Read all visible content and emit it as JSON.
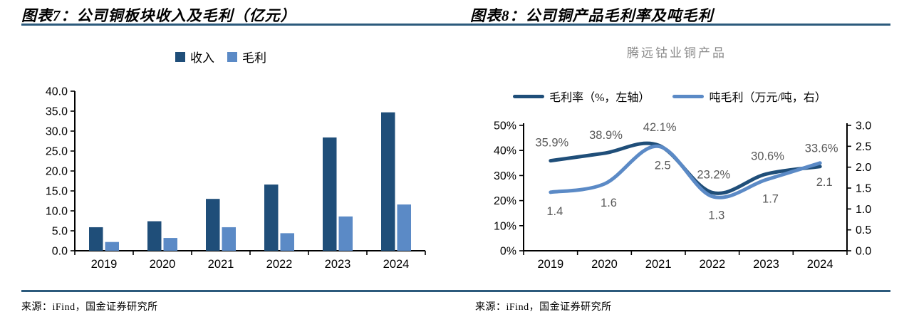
{
  "figures": [
    {
      "title": "图表7：公司铜板块收入及毛利（亿元）",
      "source": "来源：iFind，国金证券研究所"
    },
    {
      "title": "图表8：公司铜产品毛利率及吨毛利",
      "subtitle": "腾远钴业铜产品",
      "source": "来源：iFind，国金证券研究所"
    }
  ],
  "colors": {
    "dark_blue": "#1F4E79",
    "light_blue": "#5B8AC6",
    "rule_blue": "#2C5A7C",
    "label_gray": "#595959",
    "subtitle_gray": "#8A8A8A",
    "axis_black": "#000000"
  },
  "chart_data": [
    {
      "type": "bar",
      "title": "公司铜板块收入及毛利（亿元）",
      "categories": [
        "2019",
        "2020",
        "2021",
        "2022",
        "2023",
        "2024"
      ],
      "series": [
        {
          "name": "收入",
          "color_key": "dark_blue",
          "values": [
            5.9,
            7.4,
            13.0,
            16.6,
            28.4,
            34.7
          ]
        },
        {
          "name": "毛利",
          "color_key": "light_blue",
          "values": [
            2.2,
            3.2,
            5.9,
            4.4,
            8.6,
            11.6
          ]
        }
      ],
      "ylim": [
        0,
        40
      ],
      "yticks": [
        "0.0",
        "5.0",
        "10.0",
        "15.0",
        "20.0",
        "25.0",
        "30.0",
        "35.0",
        "40.0"
      ],
      "grid": false,
      "legend_position": "top"
    },
    {
      "type": "line",
      "title": "腾远钴业铜产品",
      "categories": [
        "2019",
        "2020",
        "2021",
        "2022",
        "2023",
        "2024"
      ],
      "series": [
        {
          "name": "毛利率（%，左轴）",
          "axis": "left",
          "color_key": "dark_blue",
          "values": [
            35.9,
            38.9,
            42.1,
            23.2,
            30.6,
            33.6
          ],
          "labels": [
            "35.9%",
            "38.9%",
            "42.1%",
            "23.2%",
            "30.6%",
            "33.6%"
          ]
        },
        {
          "name": "吨毛利（万元/吨，右）",
          "axis": "right",
          "color_key": "light_blue",
          "values": [
            1.4,
            1.6,
            2.5,
            1.3,
            1.7,
            2.1
          ],
          "labels": [
            "1.4",
            "1.6",
            "2.5",
            "1.3",
            "1.7",
            "2.1"
          ]
        }
      ],
      "left_axis": {
        "min": 0,
        "max": 50,
        "ticks": [
          "0%",
          "10%",
          "20%",
          "30%",
          "40%",
          "50%"
        ]
      },
      "right_axis": {
        "min": 0,
        "max": 3,
        "ticks": [
          "0.0",
          "0.5",
          "1.0",
          "1.5",
          "2.0",
          "2.5",
          "3.0"
        ]
      },
      "grid": false,
      "legend_position": "top"
    }
  ]
}
